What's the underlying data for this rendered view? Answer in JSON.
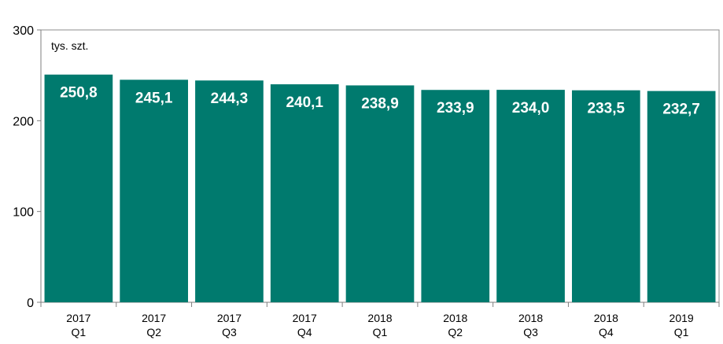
{
  "chart_data": {
    "type": "bar",
    "unit_label": "tys. szt.",
    "categories": [
      [
        "2017",
        "Q1"
      ],
      [
        "2017",
        "Q2"
      ],
      [
        "2017",
        "Q3"
      ],
      [
        "2017",
        "Q4"
      ],
      [
        "2018",
        "Q1"
      ],
      [
        "2018",
        "Q2"
      ],
      [
        "2018",
        "Q3"
      ],
      [
        "2018",
        "Q4"
      ],
      [
        "2019",
        "Q1"
      ]
    ],
    "values": [
      250.8,
      245.1,
      244.3,
      240.1,
      238.9,
      233.9,
      234.0,
      233.5,
      232.7
    ],
    "value_labels": [
      "250,8",
      "245,1",
      "244,3",
      "240,1",
      "238,9",
      "233,9",
      "234,0",
      "233,5",
      "232,7"
    ],
    "ylim": [
      0,
      300
    ],
    "yticks": [
      0,
      100,
      200,
      300
    ],
    "ytick_labels": [
      "0",
      "100",
      "200",
      "300"
    ],
    "bar_color": "#007A6E",
    "grid": false,
    "legend": "none"
  }
}
